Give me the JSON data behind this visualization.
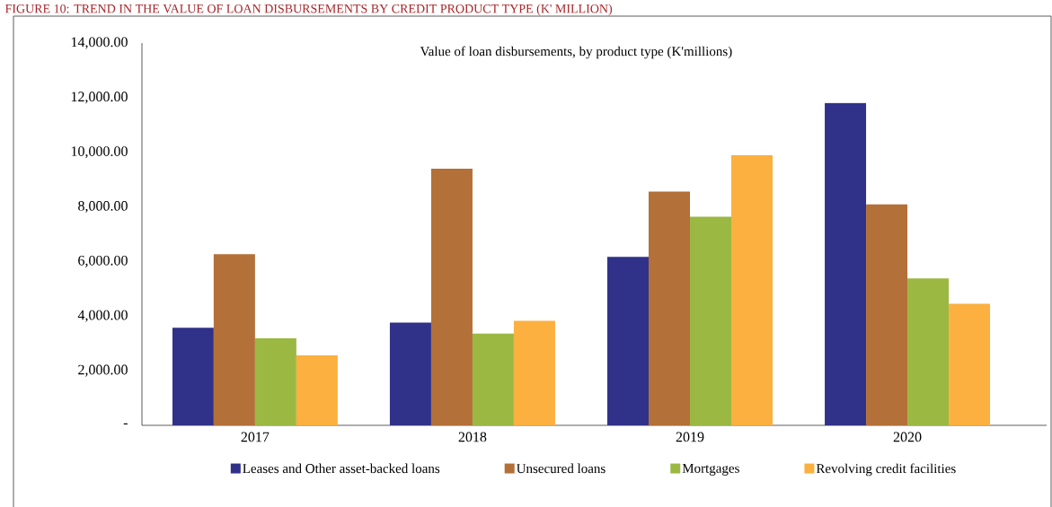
{
  "chart_data": {
    "type": "bar",
    "title": "Value of loan disbursements, by product type (K'millions)",
    "annotations": [
      "FIGURE 10: TREND IN THE VALUE OF LOAN DISBURSEMENTS BY CREDIT PRODUCT TYPE (K' MILLION)"
    ],
    "categories": [
      "2017",
      "2018",
      "2019",
      "2020"
    ],
    "series": [
      {
        "name": "Leases and Other asset-backed loans",
        "color": "#303189",
        "values": [
          3570,
          3760,
          6170,
          11810
        ]
      },
      {
        "name": "Unsecured loans",
        "color": "#b37038",
        "values": [
          6270,
          9400,
          8560,
          8090
        ]
      },
      {
        "name": "Mortgages",
        "color": "#9bb843",
        "values": [
          3190,
          3360,
          7640,
          5380
        ]
      },
      {
        "name": "Revolving credit facilities",
        "color": "#fbb040",
        "values": [
          2560,
          3830,
          9900,
          4450
        ]
      }
    ],
    "ylim": [
      0,
      14000
    ],
    "yticks": [
      {
        "value": 0,
        "label": "-"
      },
      {
        "value": 2000,
        "label": "2,000.00"
      },
      {
        "value": 4000,
        "label": "4,000.00"
      },
      {
        "value": 6000,
        "label": "6,000.00"
      },
      {
        "value": 8000,
        "label": "8,000.00"
      },
      {
        "value": 10000,
        "label": "10,000.00"
      },
      {
        "value": 12000,
        "label": "12,000.00"
      },
      {
        "value": 14000,
        "label": "14,000.00"
      }
    ],
    "grid": false,
    "legend": "bottom"
  }
}
